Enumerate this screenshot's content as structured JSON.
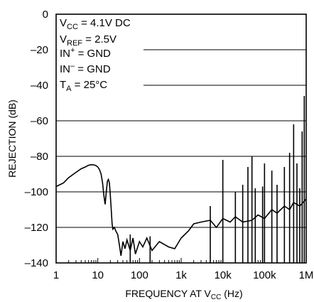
{
  "chart_data": {
    "type": "line",
    "xlabel_prefix": "FREQUENCY AT V",
    "xlabel_sub": "CC",
    "xlabel_suffix": " (Hz)",
    "ylabel": "REJECTION (dB)",
    "x_scale": "log",
    "xlim": [
      1,
      1000000
    ],
    "ylim": [
      -140,
      0
    ],
    "grid": true,
    "x_ticks": [
      "1",
      "10",
      "100",
      "1k",
      "10k",
      "100k",
      "1M"
    ],
    "y_ticks": [
      "0",
      "–20",
      "–40",
      "–60",
      "–80",
      "–100",
      "–120",
      "–140"
    ],
    "annotation": [
      {
        "main": "V",
        "sub": "CC",
        "rest": " = 4.1V DC"
      },
      {
        "main": "V",
        "sub": "REF",
        "rest": " = 2.5V"
      },
      {
        "main": "IN",
        "sup": "+",
        "rest": " = GND"
      },
      {
        "main": "IN",
        "sup": "–",
        "rest": " = GND"
      },
      {
        "main": "T",
        "sub": "A",
        "rest": " = 25°C"
      }
    ],
    "series": [
      {
        "x": [
          1,
          1.5,
          2,
          3,
          4,
          5,
          6,
          7,
          8,
          9,
          10,
          11,
          12,
          13,
          14,
          15,
          16,
          17,
          18,
          19,
          20,
          21,
          22,
          23,
          25,
          27,
          30,
          33,
          36,
          40,
          45,
          50,
          60,
          70,
          80,
          100,
          120,
          150,
          200,
          300,
          500,
          700,
          1000,
          1500,
          2000,
          3000,
          5000,
          7000,
          10000,
          15000,
          20000,
          30000,
          50000,
          70000,
          100000,
          150000,
          200000,
          300000,
          400000,
          500000,
          700000,
          1000000
        ],
        "y": [
          -97,
          -95,
          -92,
          -89,
          -87,
          -86,
          -85,
          -84.7,
          -84.8,
          -85.2,
          -86,
          -87.5,
          -90,
          -95,
          -102,
          -107,
          -100,
          -94,
          -93,
          -95,
          -102,
          -110,
          -118,
          -121,
          -120,
          -122,
          -124,
          -130,
          -136,
          -128,
          -132,
          -127,
          -133,
          -126,
          -135,
          -128,
          -131,
          -126,
          -133,
          -128,
          -131,
          -132,
          -126,
          -122,
          -118,
          -117,
          -116,
          -120,
          -115,
          -117,
          -114,
          -117,
          -116,
          -113,
          -115,
          -110,
          -112,
          -108,
          -110,
          -106,
          -108,
          -104
        ]
      }
    ],
    "spikes": [
      {
        "x": 60,
        "y": -124
      },
      {
        "x": 180,
        "y": -125
      },
      {
        "x": 5000,
        "y": -108
      },
      {
        "x": 10000,
        "y": -82
      },
      {
        "x": 20000,
        "y": -100
      },
      {
        "x": 30000,
        "y": -96
      },
      {
        "x": 40000,
        "y": -86
      },
      {
        "x": 50000,
        "y": -80
      },
      {
        "x": 60000,
        "y": -98
      },
      {
        "x": 90000,
        "y": -97
      },
      {
        "x": 100000,
        "y": -84
      },
      {
        "x": 150000,
        "y": -88
      },
      {
        "x": 200000,
        "y": -96
      },
      {
        "x": 300000,
        "y": -86
      },
      {
        "x": 400000,
        "y": -78
      },
      {
        "x": 500000,
        "y": -62
      },
      {
        "x": 600000,
        "y": -84
      },
      {
        "x": 700000,
        "y": -98
      },
      {
        "x": 800000,
        "y": -66
      },
      {
        "x": 900000,
        "y": -46
      }
    ]
  }
}
